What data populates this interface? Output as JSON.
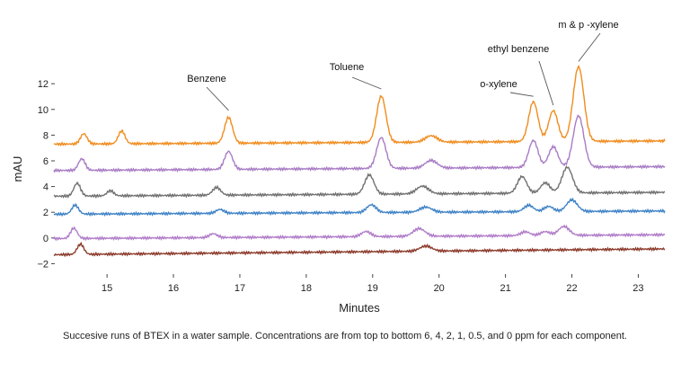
{
  "chart_data": {
    "type": "line",
    "title": "",
    "xlabel": "Minutes",
    "ylabel": "mAU",
    "xlim": [
      14.2,
      23.4
    ],
    "ylim": [
      -2.6,
      13.2
    ],
    "x_ticks": [
      15,
      16,
      17,
      18,
      19,
      20,
      21,
      22,
      23
    ],
    "y_ticks": [
      -2,
      0,
      2,
      4,
      6,
      8,
      10,
      12
    ],
    "grid": false,
    "legend": "none",
    "series": [
      {
        "color": "#f08c1e",
        "baseline": 7.3,
        "drift": 0.25,
        "peaks": [
          [
            14.65,
            0.8,
            0.05
          ],
          [
            15.22,
            1.0,
            0.05
          ],
          [
            16.83,
            2.0,
            0.06
          ],
          [
            19.13,
            3.6,
            0.07
          ],
          [
            19.88,
            0.5,
            0.09
          ],
          [
            21.42,
            3.1,
            0.07
          ],
          [
            21.72,
            2.4,
            0.07
          ],
          [
            22.1,
            5.8,
            0.08
          ]
        ]
      },
      {
        "color": "#a87cc4",
        "baseline": 5.25,
        "drift": 0.3,
        "peaks": [
          [
            14.62,
            0.9,
            0.05
          ],
          [
            16.83,
            1.4,
            0.06
          ],
          [
            19.13,
            2.4,
            0.07
          ],
          [
            19.88,
            0.6,
            0.09
          ],
          [
            21.42,
            2.1,
            0.07
          ],
          [
            21.72,
            1.6,
            0.07
          ],
          [
            22.1,
            4.0,
            0.08
          ]
        ]
      },
      {
        "color": "#707070",
        "baseline": 3.25,
        "drift": 0.3,
        "peaks": [
          [
            14.55,
            1.0,
            0.05
          ],
          [
            15.05,
            0.4,
            0.05
          ],
          [
            16.65,
            0.6,
            0.06
          ],
          [
            18.95,
            1.5,
            0.07
          ],
          [
            19.75,
            0.6,
            0.09
          ],
          [
            21.25,
            1.3,
            0.07
          ],
          [
            21.6,
            0.8,
            0.07
          ],
          [
            21.93,
            2.0,
            0.08
          ]
        ]
      },
      {
        "color": "#3e82c6",
        "baseline": 1.85,
        "drift": 0.25,
        "peaks": [
          [
            14.52,
            0.7,
            0.05
          ],
          [
            16.7,
            0.3,
            0.06
          ],
          [
            18.98,
            0.6,
            0.07
          ],
          [
            19.8,
            0.4,
            0.09
          ],
          [
            21.35,
            0.5,
            0.07
          ],
          [
            21.65,
            0.4,
            0.07
          ],
          [
            22.0,
            0.9,
            0.08
          ]
        ]
      },
      {
        "color": "#b07cc8",
        "baseline": -0.05,
        "drift": 0.3,
        "peaks": [
          [
            14.5,
            0.8,
            0.05
          ],
          [
            16.6,
            0.3,
            0.06
          ],
          [
            18.9,
            0.4,
            0.07
          ],
          [
            19.7,
            0.6,
            0.09
          ],
          [
            21.3,
            0.3,
            0.07
          ],
          [
            21.6,
            0.3,
            0.07
          ],
          [
            21.88,
            0.7,
            0.08
          ]
        ]
      },
      {
        "color": "#8b3a2a",
        "baseline": -1.3,
        "drift": 0.45,
        "peaks": [
          [
            14.6,
            0.8,
            0.05
          ],
          [
            19.8,
            0.4,
            0.09
          ]
        ]
      }
    ],
    "annotations": [
      {
        "text": "Benzene",
        "x": 16.83,
        "y": 9.6
      },
      {
        "text": "Toluene",
        "x": 19.13,
        "y": 11.2
      },
      {
        "text": "o-xylene",
        "x": 21.42,
        "y": 10.8
      },
      {
        "text": "ethyl benzene",
        "x": 21.72,
        "y": 9.7
      },
      {
        "text": "m & p -xylene",
        "x": 22.1,
        "y": 13.4
      }
    ]
  },
  "caption": "Succesive runs of BTEX in a water sample.  Concentrations are from top to bottom 6, 4, 2, 1, 0.5, and 0 ppm for each component."
}
